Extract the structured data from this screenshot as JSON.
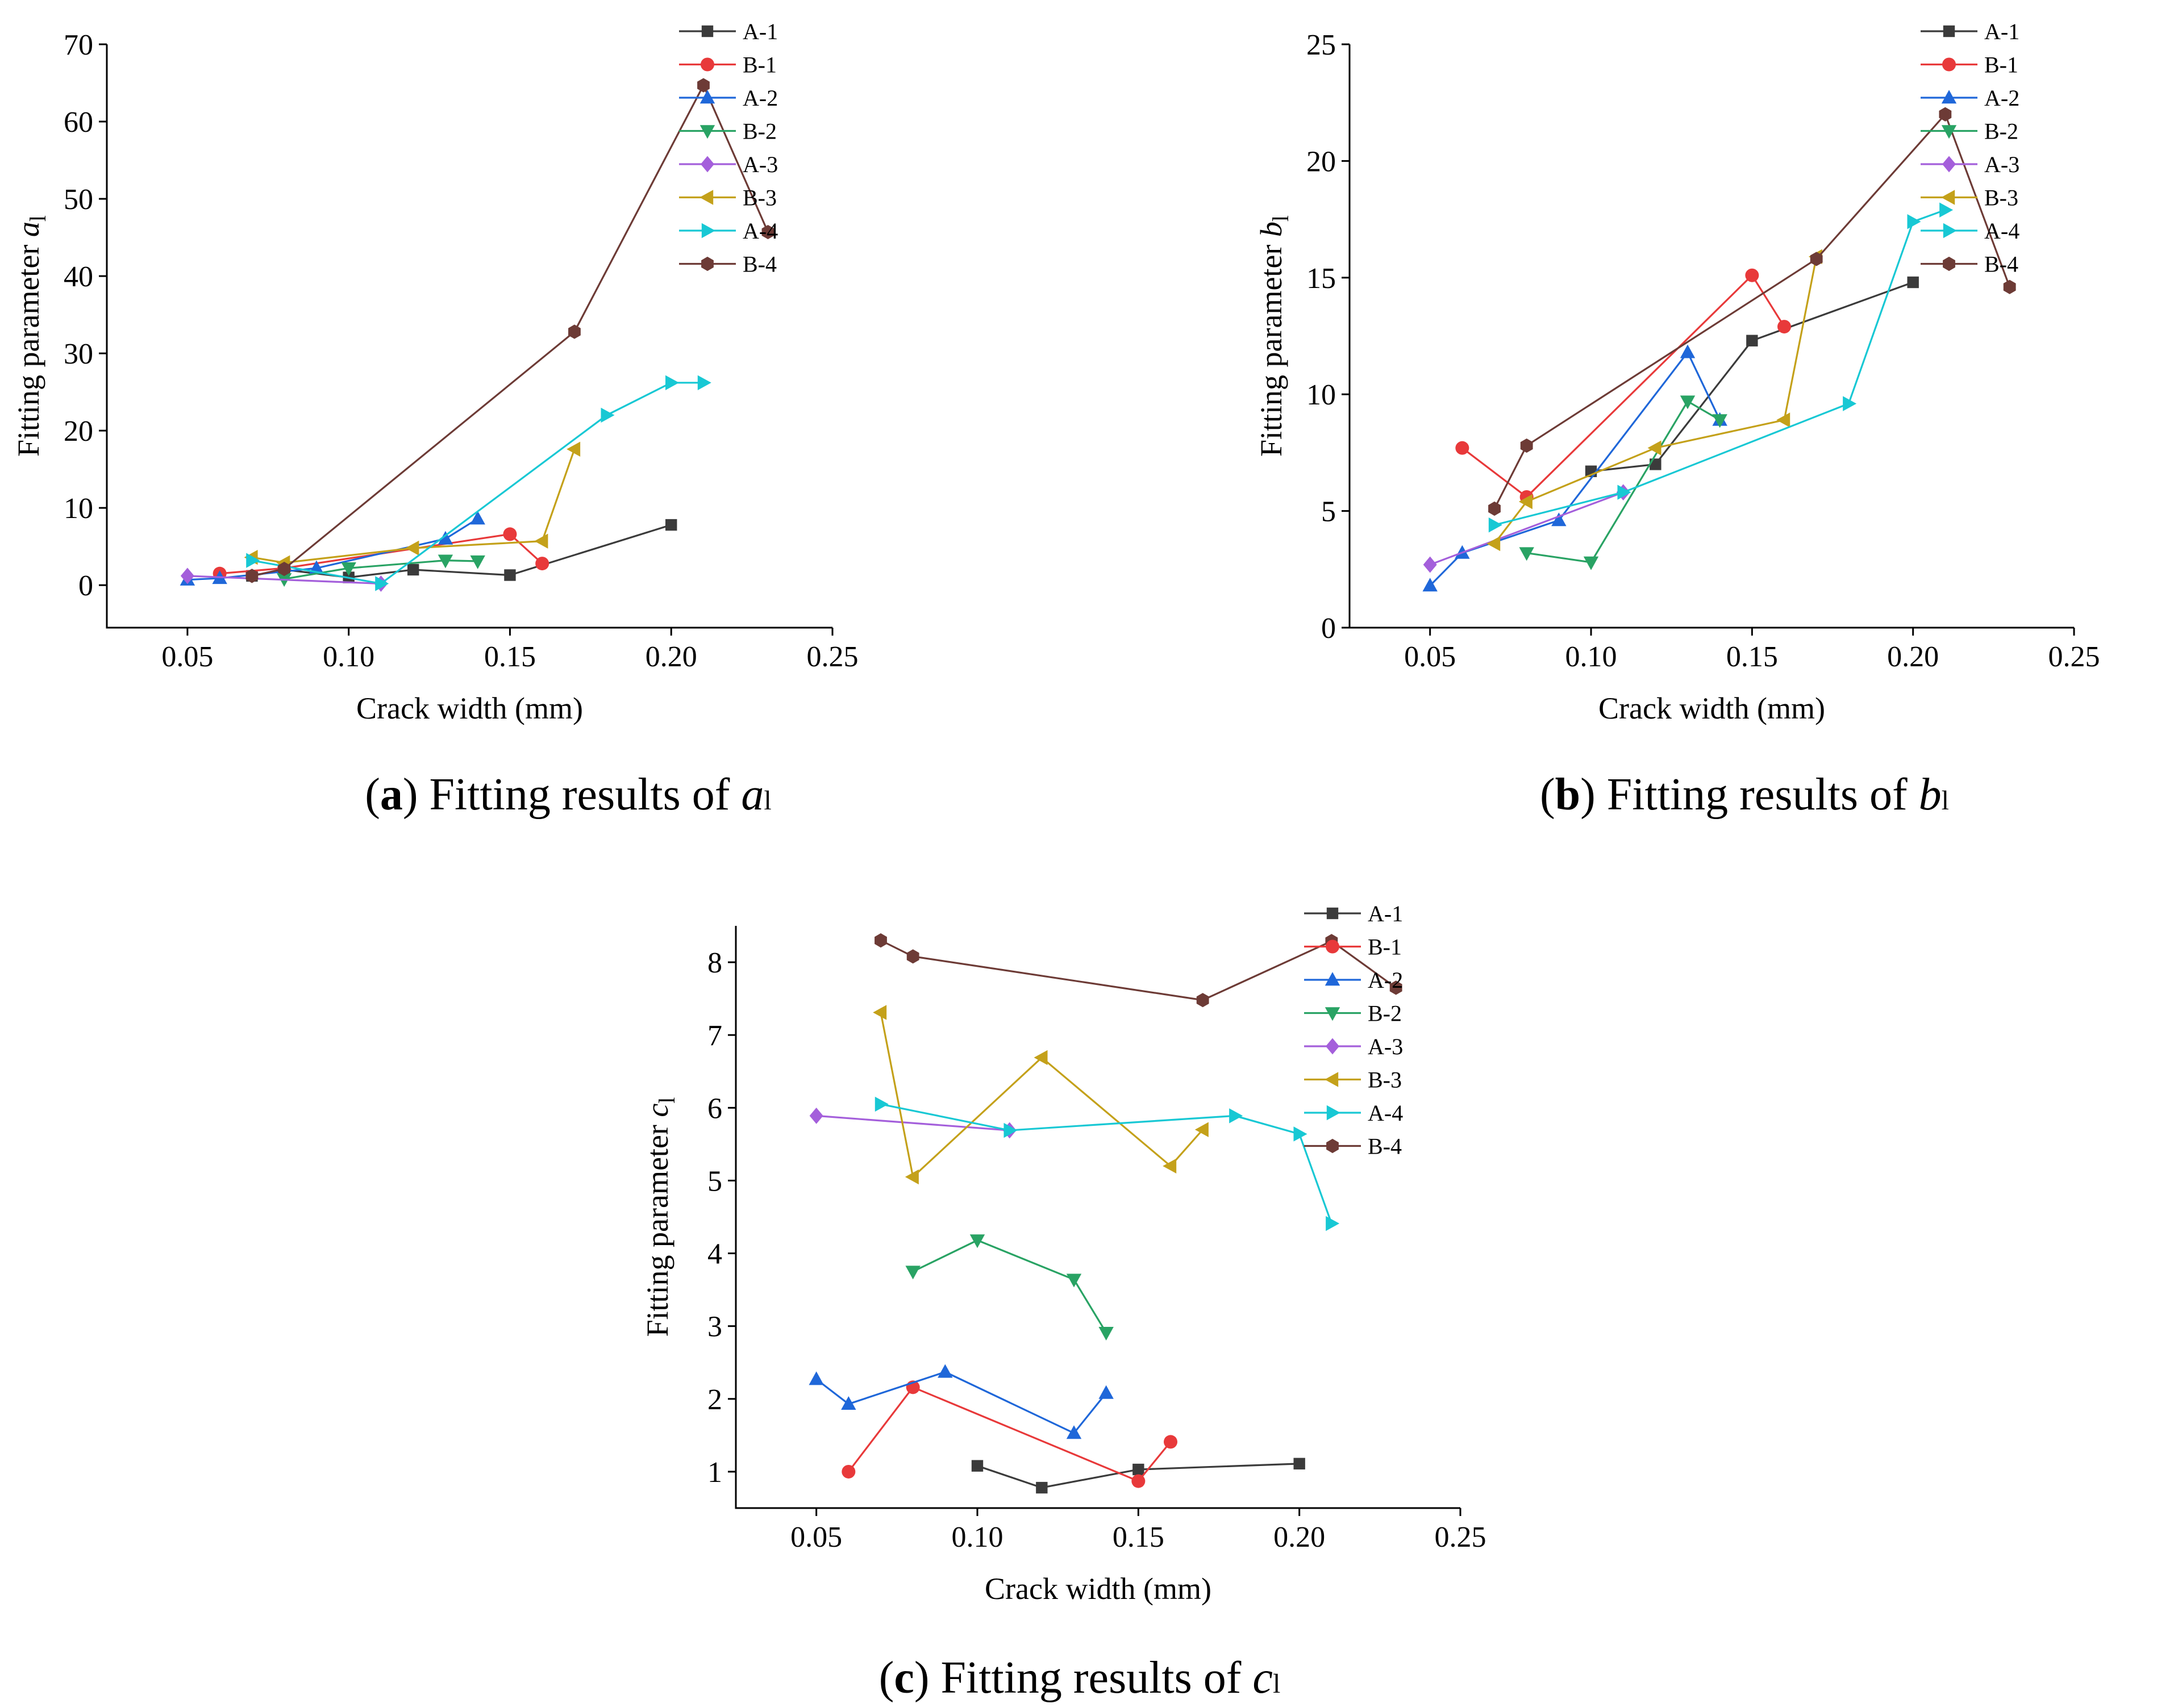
{
  "captions": [
    {
      "label": "a",
      "text": " Fitting results of ",
      "var": "a",
      "sub": "l"
    },
    {
      "label": "b",
      "text": " Fitting results of ",
      "var": "b",
      "sub": "l"
    },
    {
      "label": "c",
      "text": " Fitting results of ",
      "var": "c",
      "sub": "l"
    }
  ],
  "chart_data": [
    {
      "type": "line",
      "title": "(a) Fitting results of a l",
      "xlabel": "Crack width (mm)",
      "ylabel": "Fitting parameter",
      "ylabel_var": "a",
      "ylabel_sub": "l",
      "xlim": [
        0.025,
        0.25
      ],
      "ylim": [
        -5.5,
        70
      ],
      "xticks": [
        0.05,
        0.1,
        0.15,
        0.2,
        0.25
      ],
      "xtick_labels": [
        "0.05",
        "0.10",
        "0.15",
        "0.20",
        "0.25"
      ],
      "yticks": [
        0,
        10,
        20,
        30,
        40,
        50,
        60,
        70
      ],
      "ytick_labels": [
        "0",
        "10",
        "20",
        "30",
        "40",
        "50",
        "60",
        "70"
      ],
      "legend_position": "top-right",
      "series": [
        {
          "name": "A-1",
          "color": "#3b3b3b",
          "marker": "square",
          "x": [
            0.07,
            0.08,
            0.1,
            0.12,
            0.15,
            0.2
          ],
          "y": [
            1.2,
            2.0,
            1.0,
            2.0,
            1.3,
            7.8
          ]
        },
        {
          "name": "B-1",
          "color": "#e8393a",
          "marker": "circle",
          "x": [
            0.06,
            0.08,
            0.15,
            0.16
          ],
          "y": [
            1.5,
            2.2,
            6.6,
            2.8
          ]
        },
        {
          "name": "A-2",
          "color": "#1f67d9",
          "marker": "triangle-up",
          "x": [
            0.05,
            0.06,
            0.09,
            0.13,
            0.14
          ],
          "y": [
            0.7,
            0.9,
            2.2,
            6.0,
            8.6
          ]
        },
        {
          "name": "B-2",
          "color": "#29a364",
          "marker": "triangle-down",
          "x": [
            0.08,
            0.1,
            0.13,
            0.14
          ],
          "y": [
            0.8,
            2.2,
            3.2,
            3.1
          ]
        },
        {
          "name": "A-3",
          "color": "#a45fdb",
          "marker": "diamond",
          "x": [
            0.05,
            0.11
          ],
          "y": [
            1.2,
            0.2
          ]
        },
        {
          "name": "B-3",
          "color": "#c4a11a",
          "marker": "triangle-left",
          "x": [
            0.07,
            0.08,
            0.12,
            0.16,
            0.17
          ],
          "y": [
            3.6,
            2.9,
            4.8,
            5.7,
            17.6
          ]
        },
        {
          "name": "A-4",
          "color": "#18c8d4",
          "marker": "triangle-right",
          "x": [
            0.07,
            0.11,
            0.18,
            0.2,
            0.21
          ],
          "y": [
            3.2,
            0.2,
            22.0,
            26.2,
            26.2
          ]
        },
        {
          "name": "B-4",
          "color": "#6d3b36",
          "marker": "hexagon",
          "x": [
            0.07,
            0.08,
            0.17,
            0.21,
            0.23
          ],
          "y": [
            1.2,
            2.1,
            32.8,
            64.7,
            45.7
          ]
        }
      ]
    },
    {
      "type": "line",
      "title": "(b) Fitting results of b l",
      "xlabel": "Crack width (mm)",
      "ylabel": "Fitting parameter",
      "ylabel_var": "b",
      "ylabel_sub": "l",
      "xlim": [
        0.025,
        0.25
      ],
      "ylim": [
        0,
        25
      ],
      "xticks": [
        0.05,
        0.1,
        0.15,
        0.2,
        0.25
      ],
      "xtick_labels": [
        "0.05",
        "0.10",
        "0.15",
        "0.20",
        "0.25"
      ],
      "yticks": [
        0,
        5,
        10,
        15,
        20,
        25
      ],
      "ytick_labels": [
        "0",
        "5",
        "10",
        "15",
        "20",
        "25"
      ],
      "legend_position": "top-right",
      "series": [
        {
          "name": "A-1",
          "color": "#3b3b3b",
          "marker": "square",
          "x": [
            0.1,
            0.12,
            0.15,
            0.2
          ],
          "y": [
            6.7,
            7.0,
            12.3,
            14.8
          ]
        },
        {
          "name": "B-1",
          "color": "#e8393a",
          "marker": "circle",
          "x": [
            0.06,
            0.08,
            0.15,
            0.16
          ],
          "y": [
            7.7,
            5.6,
            15.1,
            12.9
          ]
        },
        {
          "name": "A-2",
          "color": "#1f67d9",
          "marker": "triangle-up",
          "x": [
            0.05,
            0.06,
            0.09,
            0.13,
            0.14
          ],
          "y": [
            1.8,
            3.2,
            4.6,
            11.8,
            8.9
          ]
        },
        {
          "name": "B-2",
          "color": "#29a364",
          "marker": "triangle-down",
          "x": [
            0.08,
            0.1,
            0.13,
            0.14
          ],
          "y": [
            3.2,
            2.8,
            9.7,
            8.9
          ]
        },
        {
          "name": "A-3",
          "color": "#a45fdb",
          "marker": "diamond",
          "x": [
            0.05,
            0.11
          ],
          "y": [
            2.7,
            5.8
          ]
        },
        {
          "name": "B-3",
          "color": "#c4a11a",
          "marker": "triangle-left",
          "x": [
            0.07,
            0.08,
            0.12,
            0.16,
            0.17
          ],
          "y": [
            3.6,
            5.4,
            7.7,
            8.9,
            15.9
          ]
        },
        {
          "name": "A-4",
          "color": "#18c8d4",
          "marker": "triangle-right",
          "x": [
            0.07,
            0.11,
            0.18,
            0.2,
            0.21
          ],
          "y": [
            4.4,
            5.8,
            9.6,
            17.4,
            17.9
          ]
        },
        {
          "name": "B-4",
          "color": "#6d3b36",
          "marker": "hexagon",
          "x": [
            0.07,
            0.08,
            0.17,
            0.21,
            0.23
          ],
          "y": [
            5.1,
            7.8,
            15.8,
            22.0,
            14.6
          ]
        }
      ]
    },
    {
      "type": "line",
      "title": "(c) Fitting results of c l",
      "xlabel": "Crack width (mm)",
      "ylabel": "Fitting parameter",
      "ylabel_var": "c",
      "ylabel_sub": "l",
      "xlim": [
        0.025,
        0.25
      ],
      "ylim": [
        0.5,
        8.5
      ],
      "xticks": [
        0.05,
        0.1,
        0.15,
        0.2,
        0.25
      ],
      "xtick_labels": [
        "0.05",
        "0.10",
        "0.15",
        "0.20",
        "0.25"
      ],
      "yticks": [
        1,
        2,
        3,
        4,
        5,
        6,
        7,
        8
      ],
      "ytick_labels": [
        "1",
        "2",
        "3",
        "4",
        "5",
        "6",
        "7",
        "8"
      ],
      "legend_position": "top-right",
      "series": [
        {
          "name": "A-1",
          "color": "#3b3b3b",
          "marker": "square",
          "x": [
            0.1,
            0.12,
            0.15,
            0.2
          ],
          "y": [
            1.08,
            0.78,
            1.03,
            1.11
          ]
        },
        {
          "name": "B-1",
          "color": "#e8393a",
          "marker": "circle",
          "x": [
            0.06,
            0.08,
            0.15,
            0.16
          ],
          "y": [
            1.0,
            2.16,
            0.87,
            1.41
          ]
        },
        {
          "name": "A-2",
          "color": "#1f67d9",
          "marker": "triangle-up",
          "x": [
            0.05,
            0.06,
            0.09,
            0.13,
            0.14
          ],
          "y": [
            2.27,
            1.93,
            2.37,
            1.53,
            2.08
          ]
        },
        {
          "name": "B-2",
          "color": "#29a364",
          "marker": "triangle-down",
          "x": [
            0.08,
            0.1,
            0.13,
            0.14
          ],
          "y": [
            3.75,
            4.18,
            3.64,
            2.91
          ]
        },
        {
          "name": "A-3",
          "color": "#a45fdb",
          "marker": "diamond",
          "x": [
            0.05,
            0.11
          ],
          "y": [
            5.89,
            5.69
          ]
        },
        {
          "name": "B-3",
          "color": "#c4a11a",
          "marker": "triangle-left",
          "x": [
            0.07,
            0.08,
            0.12,
            0.16,
            0.17
          ],
          "y": [
            7.31,
            5.05,
            6.69,
            5.2,
            5.7
          ]
        },
        {
          "name": "A-4",
          "color": "#18c8d4",
          "marker": "triangle-right",
          "x": [
            0.07,
            0.11,
            0.18,
            0.2,
            0.21
          ],
          "y": [
            6.05,
            5.69,
            5.89,
            5.64,
            4.41
          ]
        },
        {
          "name": "B-4",
          "color": "#6d3b36",
          "marker": "hexagon",
          "x": [
            0.07,
            0.08,
            0.17,
            0.21,
            0.23
          ],
          "y": [
            8.3,
            8.08,
            7.48,
            8.29,
            7.65
          ]
        }
      ]
    }
  ]
}
